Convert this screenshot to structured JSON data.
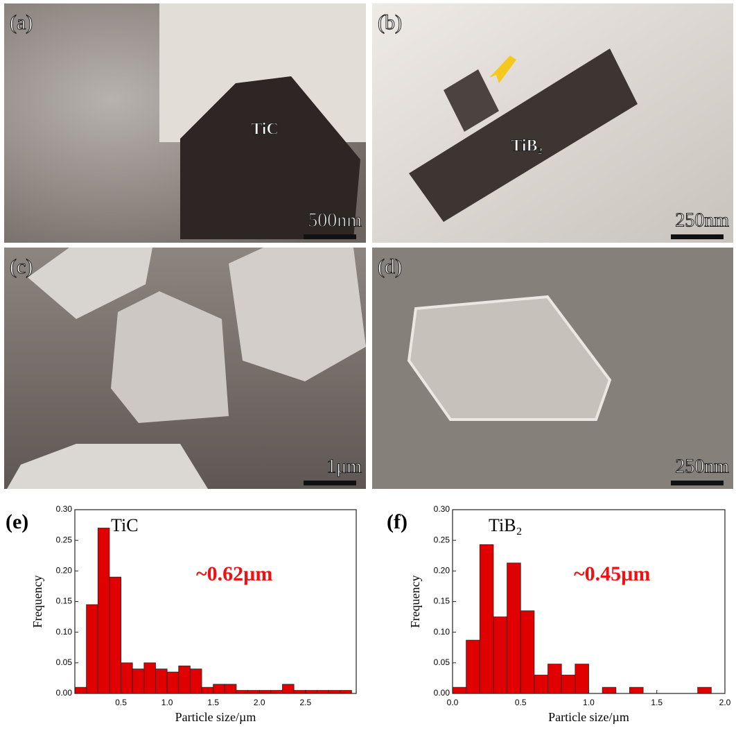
{
  "panels": [
    {
      "label": "(a)",
      "annotation": "TiC",
      "scale": "500nm"
    },
    {
      "label": "(b)",
      "annotation": "TiB₂",
      "scale": "250nm"
    },
    {
      "label": "(c)",
      "scale": "1μm"
    },
    {
      "label": "(d)",
      "scale": "250nm"
    }
  ],
  "chart_data": [
    {
      "type": "histogram",
      "panel_label": "(e)",
      "label": "TiC",
      "annotation": "~0.62µm",
      "xlabel": "Particle size/µm",
      "ylabel": "Frequency",
      "color": "#e00000",
      "bins": [
        0,
        0.125,
        0.25,
        0.375,
        0.5,
        0.625,
        0.75,
        0.875,
        1,
        1.125,
        1.25,
        1.375,
        1.5,
        1.625,
        1.75,
        1.875,
        2,
        2.125,
        2.25,
        2.375,
        2.5,
        2.625,
        2.75,
        2.875,
        3
      ],
      "values": [
        0.01,
        0.145,
        0.27,
        0.19,
        0.05,
        0.04,
        0.05,
        0.04,
        0.035,
        0.045,
        0.04,
        0.01,
        0.015,
        0.015,
        0.005,
        0.005,
        0.005,
        0.005,
        0.015,
        0.005,
        0.005,
        0.005,
        0.005,
        0.005
      ],
      "xlim": [
        0,
        3.05
      ],
      "xticks": [
        0.5,
        {
          "value": 1,
          "label": "1.0"
        },
        1.5,
        {
          "value": 2,
          "label": "2.0"
        },
        2.5
      ],
      "ylim": [
        0,
        0.3
      ],
      "yticks": [
        {
          "value": 0,
          "label": "0.00"
        },
        {
          "value": 0.05,
          "label": "0.05"
        },
        {
          "value": 0.1,
          "label": "0.10"
        },
        {
          "value": 0.15,
          "label": "0.15"
        },
        {
          "value": 0.2,
          "label": "0.20"
        },
        {
          "value": 0.25,
          "label": "0.25"
        },
        {
          "value": 0.3,
          "label": "0.30"
        }
      ]
    },
    {
      "type": "histogram",
      "panel_label": "(f)",
      "label": "TiB₂",
      "annotation": "~0.45µm",
      "xlabel": "Particle size/µm",
      "ylabel": "Frequency",
      "color": "#e00000",
      "bins": [
        0,
        0.1,
        0.2,
        0.3,
        0.4,
        0.5,
        0.6,
        0.7,
        0.8,
        0.9,
        1,
        1.1,
        1.2,
        1.3,
        1.4,
        1.5,
        1.6,
        1.7,
        1.8,
        1.9,
        2
      ],
      "values": [
        0.01,
        0.087,
        0.243,
        0.125,
        0.213,
        0.135,
        0.03,
        0.048,
        0.03,
        0.048,
        0,
        0.01,
        0,
        0.01,
        0,
        0,
        0,
        0,
        0.01,
        0
      ],
      "xlim": [
        0,
        2
      ],
      "xticks": [
        {
          "value": 0,
          "label": "0.0"
        },
        0.5,
        {
          "value": 1,
          "label": "1.0"
        },
        1.5,
        {
          "value": 2,
          "label": "2.0"
        }
      ],
      "ylim": [
        0,
        0.3
      ],
      "yticks": [
        {
          "value": 0,
          "label": "0.00"
        },
        {
          "value": 0.05,
          "label": "0.05"
        },
        {
          "value": 0.1,
          "label": "0.10"
        },
        {
          "value": 0.15,
          "label": "0.15"
        },
        {
          "value": 0.2,
          "label": "0.20"
        },
        {
          "value": 0.25,
          "label": "0.25"
        },
        {
          "value": 0.3,
          "label": "0.30"
        }
      ]
    }
  ]
}
